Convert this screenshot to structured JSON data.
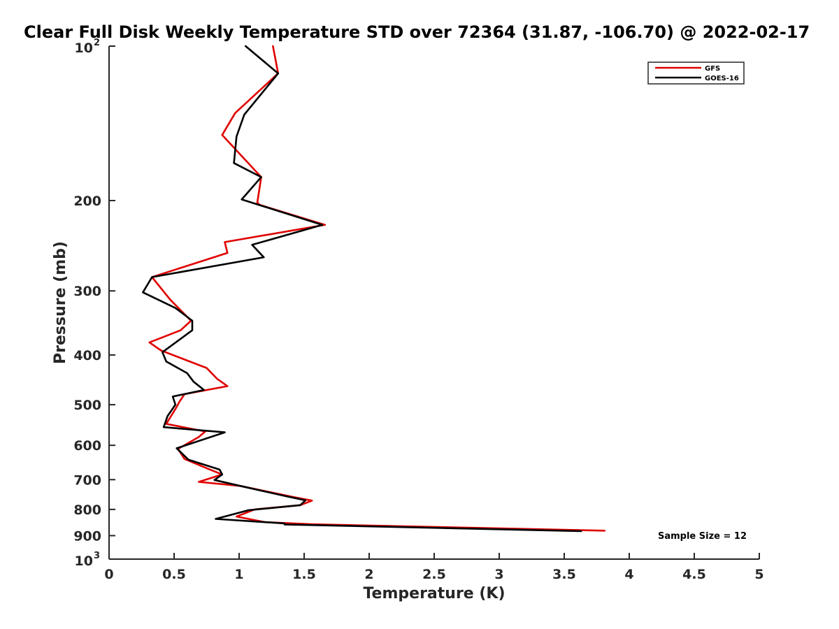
{
  "chart_data": {
    "type": "line",
    "title": "Clear Full Disk Weekly Temperature STD over 72364 (31.87, -106.70) @ 2022-02-17",
    "xlabel": "Temperature (K)",
    "ylabel": "Pressure (mb)",
    "xlim": [
      0,
      5
    ],
    "ylim": [
      100,
      1000
    ],
    "y_scale": "log",
    "y_reversed": true,
    "grid": false,
    "legend_position": "top-right",
    "x_ticks": [
      {
        "value": 0,
        "label": "0"
      },
      {
        "value": 0.5,
        "label": "0.5"
      },
      {
        "value": 1,
        "label": "1"
      },
      {
        "value": 1.5,
        "label": "1.5"
      },
      {
        "value": 2,
        "label": "2"
      },
      {
        "value": 2.5,
        "label": "2.5"
      },
      {
        "value": 3,
        "label": "3"
      },
      {
        "value": 3.5,
        "label": "3.5"
      },
      {
        "value": 4,
        "label": "4"
      },
      {
        "value": 4.5,
        "label": "4.5"
      },
      {
        "value": 5,
        "label": "5"
      }
    ],
    "y_ticks": [
      {
        "value": 100,
        "base": "10",
        "exp": "2"
      },
      {
        "value": 200,
        "label": "200"
      },
      {
        "value": 300,
        "label": "300"
      },
      {
        "value": 400,
        "label": "400"
      },
      {
        "value": 500,
        "label": "500"
      },
      {
        "value": 600,
        "label": "600"
      },
      {
        "value": 700,
        "label": "700"
      },
      {
        "value": 800,
        "label": "800"
      },
      {
        "value": 900,
        "label": "900"
      },
      {
        "value": 1000,
        "base": "10",
        "exp": "3"
      }
    ],
    "series": [
      {
        "name": "GFS",
        "color": "#e00000",
        "x": [
          1.26,
          1.3,
          0.97,
          0.87,
          1.17,
          1.14,
          1.16,
          1.66,
          0.89,
          0.91,
          0.33,
          0.47,
          0.63,
          0.55,
          0.31,
          0.4,
          0.75,
          0.83,
          0.91,
          0.58,
          0.54,
          0.52,
          0.44,
          0.74,
          0.69,
          0.53,
          0.58,
          0.77,
          0.87,
          0.69,
          1.01,
          1.42,
          1.56,
          1.47,
          1.12,
          0.98,
          1.2,
          1.55,
          3.81
        ],
        "y": [
          100,
          113,
          135,
          149,
          180,
          202,
          204,
          223,
          241,
          253,
          282,
          312,
          343,
          358,
          378,
          392,
          424,
          445,
          460,
          477,
          494,
          505,
          545,
          564,
          578,
          610,
          638,
          668,
          684,
          707,
          720,
          757,
          769,
          785,
          800,
          826,
          847,
          855,
          880
        ]
      },
      {
        "name": "GOES-16",
        "color": "#000000",
        "x": [
          1.05,
          1.3,
          1.04,
          0.98,
          0.96,
          1.17,
          1.02,
          1.64,
          1.1,
          1.19,
          0.33,
          0.26,
          0.51,
          0.64,
          0.64,
          0.41,
          0.44,
          0.6,
          0.65,
          0.73,
          0.49,
          0.51,
          0.45,
          0.42,
          0.89,
          0.52,
          0.61,
          0.85,
          0.87,
          0.81,
          1.03,
          1.37,
          1.51,
          1.47,
          1.07,
          0.82,
          1.35,
          1.35,
          3.63
        ],
        "y": [
          100,
          113,
          136,
          150,
          169,
          180,
          199,
          223,
          244,
          258,
          282,
          302,
          324,
          343,
          358,
          395,
          412,
          434,
          451,
          468,
          482,
          500,
          526,
          553,
          566,
          608,
          640,
          669,
          684,
          701,
          722,
          755,
          768,
          785,
          803,
          835,
          852,
          856,
          882
        ]
      }
    ],
    "annotations": [
      "Sample Size = 12"
    ]
  }
}
